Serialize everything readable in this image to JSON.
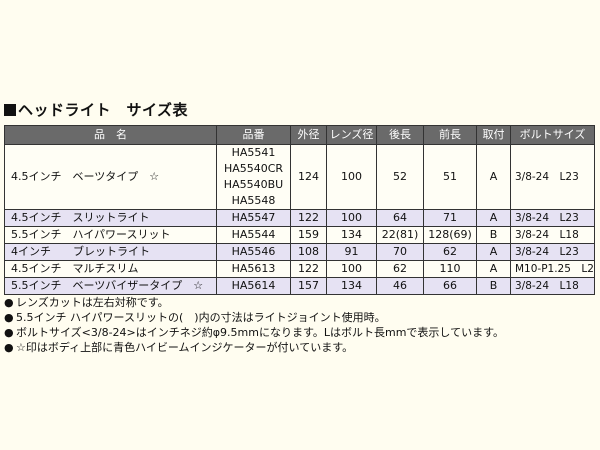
{
  "title": "ヘッドライト　サイズ表",
  "columns": [
    "品　名",
    "品番",
    "外径",
    "レンズ径",
    "後長",
    "前長",
    "取付",
    "ボルトサイズ"
  ],
  "rows": [
    {
      "name": "4.5インチ　ベーツタイプ　☆",
      "parts": [
        "HA5541",
        "HA5540CR",
        "HA5540BU",
        "HA5548"
      ],
      "outer": "124",
      "lens": "100",
      "rear": "52",
      "front": "51",
      "mount": "A",
      "bolt": "3/8-24　L23",
      "shaded": false
    },
    {
      "name": "4.5インチ　スリットライト",
      "parts": [
        "HA5547"
      ],
      "outer": "122",
      "lens": "100",
      "rear": "64",
      "front": "71",
      "mount": "A",
      "bolt": "3/8-24　L23",
      "shaded": true
    },
    {
      "name": "5.5インチ　ハイパワースリット",
      "parts": [
        "HA5544"
      ],
      "outer": "159",
      "lens": "134",
      "rear": "22(81)",
      "front": "128(69)",
      "mount": "B",
      "bolt": "3/8-24　L18",
      "shaded": false
    },
    {
      "name": "4インチ　　ブレットライト",
      "parts": [
        "HA5546"
      ],
      "outer": "108",
      "lens": "91",
      "rear": "70",
      "front": "62",
      "mount": "A",
      "bolt": "3/8-24　L23",
      "shaded": true
    },
    {
      "name": "4.5インチ　マルチスリム",
      "parts": [
        "HA5613"
      ],
      "outer": "122",
      "lens": "100",
      "rear": "62",
      "front": "110",
      "mount": "A",
      "bolt": "M10-P1.25　L25",
      "shaded": false
    },
    {
      "name": "5.5インチ　ベーツバイザータイプ　☆",
      "parts": [
        "HA5614"
      ],
      "outer": "157",
      "lens": "134",
      "rear": "46",
      "front": "66",
      "mount": "B",
      "bolt": "3/8-24　L18",
      "shaded": true
    }
  ],
  "notes": [
    "レンズカットは左右対称です。",
    "5.5インチ ハイパワースリットの(　)内の寸法はライトジョイント使用時。",
    "ボルトサイズ<3/8-24>はインチネジ約φ9.5mmになります。Lはボルト長mmで表示しています。",
    "☆印はボディ上部に青色ハイビームインジケーターが付いています。"
  ],
  "bullet": "●",
  "title_mark": "■"
}
